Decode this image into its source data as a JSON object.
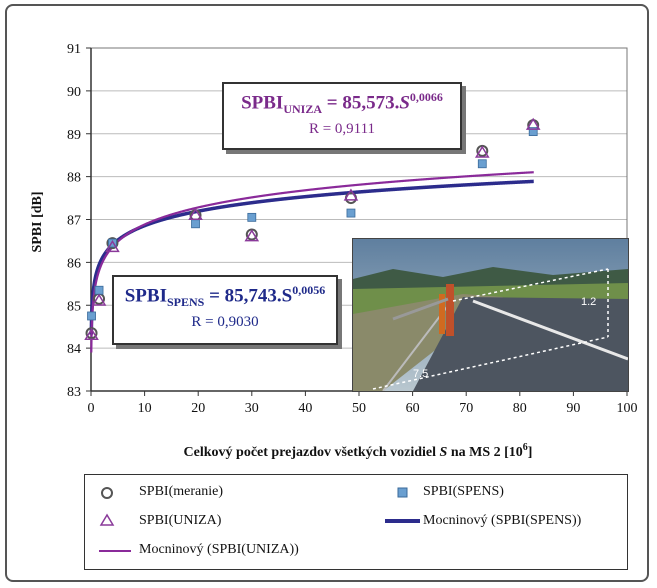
{
  "chart_data": {
    "type": "scatter",
    "xlabel": {
      "prefix": "Celkový počet prejazdov všetkých vozidiel ",
      "var": "S",
      "suffix": " na MS 2 [10",
      "sup": "6",
      "close": "]"
    },
    "ylabel": "SPBI  [dB]",
    "xlim": [
      0,
      100
    ],
    "ylim": [
      83,
      91
    ],
    "xticks": [
      0,
      10,
      20,
      30,
      40,
      50,
      60,
      70,
      80,
      90,
      100
    ],
    "yticks": [
      83,
      84,
      85,
      86,
      87,
      88,
      89,
      90,
      91
    ],
    "legend_position": "bottom",
    "series": [
      {
        "name": "SPBI(meranie)",
        "marker": "circle",
        "color": "#555555",
        "x": [
          0.1,
          1.5,
          4,
          19.5,
          30,
          48.5,
          73,
          82.5
        ],
        "y": [
          84.35,
          85.15,
          86.45,
          87.1,
          86.65,
          87.5,
          88.6,
          89.2
        ]
      },
      {
        "name": "SPBI(SPENS)",
        "marker": "square",
        "color": "#6a9fd0",
        "x": [
          0.1,
          1.5,
          4,
          19.5,
          30,
          48.5,
          73,
          82.5
        ],
        "y": [
          84.75,
          85.35,
          86.45,
          86.9,
          87.05,
          87.15,
          88.3,
          89.05
        ]
      },
      {
        "name": "SPBI(UNIZA)",
        "marker": "triangle",
        "color": "#8a3a9a",
        "x": [
          0.1,
          1.5,
          4,
          19.5,
          30,
          48.5,
          73,
          82.5
        ],
        "y": [
          84.3,
          85.1,
          86.35,
          87.1,
          86.6,
          87.55,
          88.55,
          89.2
        ]
      },
      {
        "name": "Mocninový  (SPBI(SPENS))",
        "type": "power_fit",
        "color": "#2c2c8c",
        "a": 85.743,
        "b": 0.0056
      },
      {
        "name": "Mocninový  (SPBI(UNIZA))",
        "type": "power_fit",
        "color": "#8a2a9a",
        "a": 85.573,
        "b": 0.0066
      }
    ],
    "annotations": {
      "uniza": {
        "lhs": "SPBI",
        "sub": "UNIZA",
        "mid": " = 85,573.",
        "var": "S",
        "sup": "0,0066",
        "r": "R = 0,9111"
      },
      "spens": {
        "lhs": "SPBI",
        "sub": "SPENS",
        "mid": " = 85,743.S",
        "sup": "0,0056",
        "r": "R = 0,9030"
      }
    },
    "photo_labels": {
      "height": "1.2",
      "distance": "7.5"
    }
  }
}
